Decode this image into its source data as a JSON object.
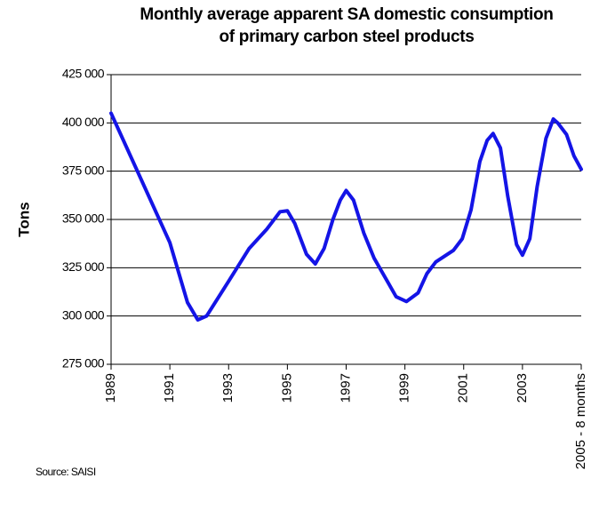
{
  "chart_data": {
    "type": "line",
    "title": "Monthly average apparent SA domestic consumption of primary carbon steel products",
    "ylabel": "Tons",
    "source": "Source: SAISI",
    "x": [
      1989.0,
      1991.0,
      1991.6,
      1991.95,
      1992.25,
      1993.0,
      1993.7,
      1994.3,
      1994.75,
      1995.0,
      1995.25,
      1995.65,
      1995.95,
      1996.25,
      1996.55,
      1996.8,
      1997.0,
      1997.25,
      1997.6,
      1997.95,
      1998.4,
      1998.7,
      1999.05,
      1999.45,
      1999.75,
      2000.05,
      2000.65,
      2000.95,
      2001.25,
      2001.55,
      2001.8,
      2002.0,
      2002.25,
      2002.5,
      2002.8,
      2003.0,
      2003.25,
      2003.5,
      2003.8,
      2004.05,
      2004.2,
      2004.5,
      2004.75,
      2005.0
    ],
    "series": [
      {
        "name": "Tons",
        "color": "#1414e6",
        "values": [
          405000,
          338000,
          307000,
          298000,
          300000,
          318000,
          335000,
          345000,
          354000,
          354500,
          348000,
          332000,
          327000,
          335000,
          350000,
          360000,
          365000,
          360000,
          343000,
          330000,
          318000,
          310000,
          307500,
          312000,
          322000,
          328000,
          334000,
          340000,
          355000,
          380000,
          391000,
          394500,
          387000,
          362000,
          337000,
          331500,
          340000,
          367000,
          392000,
          402000,
          400000,
          394000,
          383000,
          376000
        ]
      }
    ],
    "xlim": [
      1989,
      2005
    ],
    "xticks": [
      1989,
      1991,
      1993,
      1995,
      1997,
      1999,
      2001,
      2003,
      {
        "value": 2005,
        "label": "2005 - 8 months"
      }
    ],
    "ylim": [
      275000,
      425000
    ],
    "yticks": [
      {
        "value": 275000,
        "label": "275 000"
      },
      {
        "value": 300000,
        "label": "300 000"
      },
      {
        "value": 325000,
        "label": "325 000"
      },
      {
        "value": 350000,
        "label": "350 000"
      },
      {
        "value": 375000,
        "label": "375 000"
      },
      {
        "value": 400000,
        "label": "400 000"
      },
      {
        "value": 425000,
        "label": "425 000"
      }
    ],
    "grid": true
  }
}
